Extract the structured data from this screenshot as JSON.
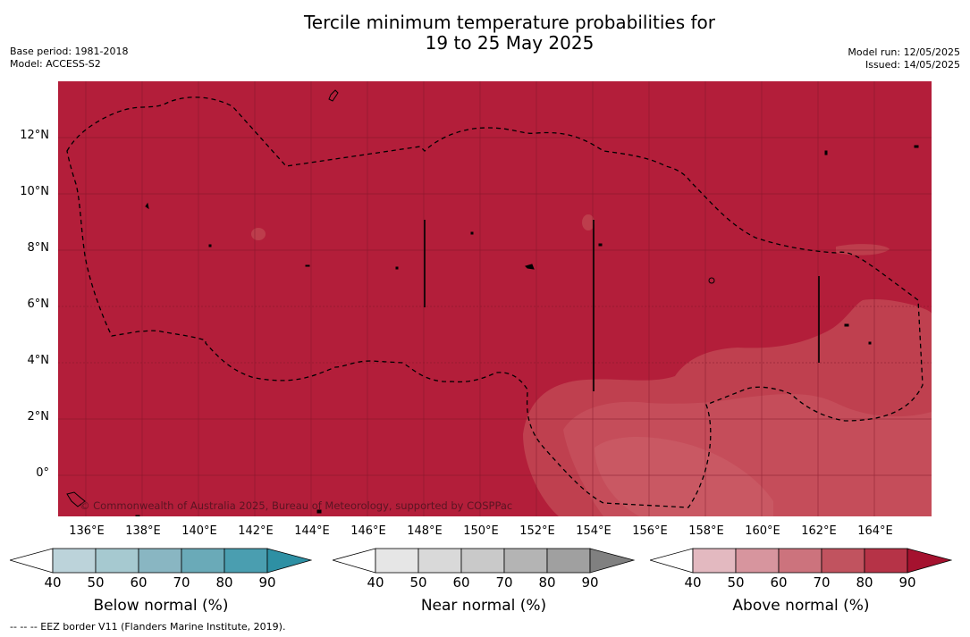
{
  "title": {
    "line1": "Tercile minimum temperature probabilities for",
    "line2": "19 to 25 May 2025"
  },
  "meta_left": {
    "base_period": "Base period: 1981-2018",
    "model": "Model: ACCESS-S2"
  },
  "meta_right": {
    "model_run": "Model run: 12/05/2025",
    "issued": "Issued: 14/05/2025"
  },
  "map": {
    "background_color": "#b31e3a",
    "copyright": "© Commonwealth of Australia 2025, Bureau of Meteorology, supported by COSPPac",
    "lat_labels": [
      "12°N",
      "10°N",
      "8°N",
      "6°N",
      "4°N",
      "2°N",
      "0°"
    ],
    "lon_labels": [
      "136°E",
      "138°E",
      "140°E",
      "142°E",
      "144°E",
      "146°E",
      "148°E",
      "150°E",
      "152°E",
      "154°E",
      "156°E",
      "158°E",
      "160°E",
      "162°E",
      "164°E"
    ]
  },
  "colorbars": {
    "ticks": [
      "40",
      "50",
      "60",
      "70",
      "80",
      "90"
    ],
    "below": {
      "label": "Below normal (%)",
      "colors": [
        "#ffffff",
        "#bcd3da",
        "#a6c9d0",
        "#89b6c2",
        "#6aaab8",
        "#4a9eb0",
        "#2e90a4"
      ]
    },
    "near": {
      "label": "Near normal (%)",
      "colors": [
        "#ffffff",
        "#e6e6e6",
        "#d9d9d9",
        "#c9c9c9",
        "#b4b4b4",
        "#a0a0a0",
        "#808080"
      ]
    },
    "above": {
      "label": "Above normal (%)",
      "colors": [
        "#ffffff",
        "#e3b9c0",
        "#d7959e",
        "#cc737d",
        "#c1535f",
        "#b63347",
        "#a5122f"
      ]
    }
  },
  "footer": "--  --  -- EEZ border V11 (Flanders Marine Institute, 2019)."
}
